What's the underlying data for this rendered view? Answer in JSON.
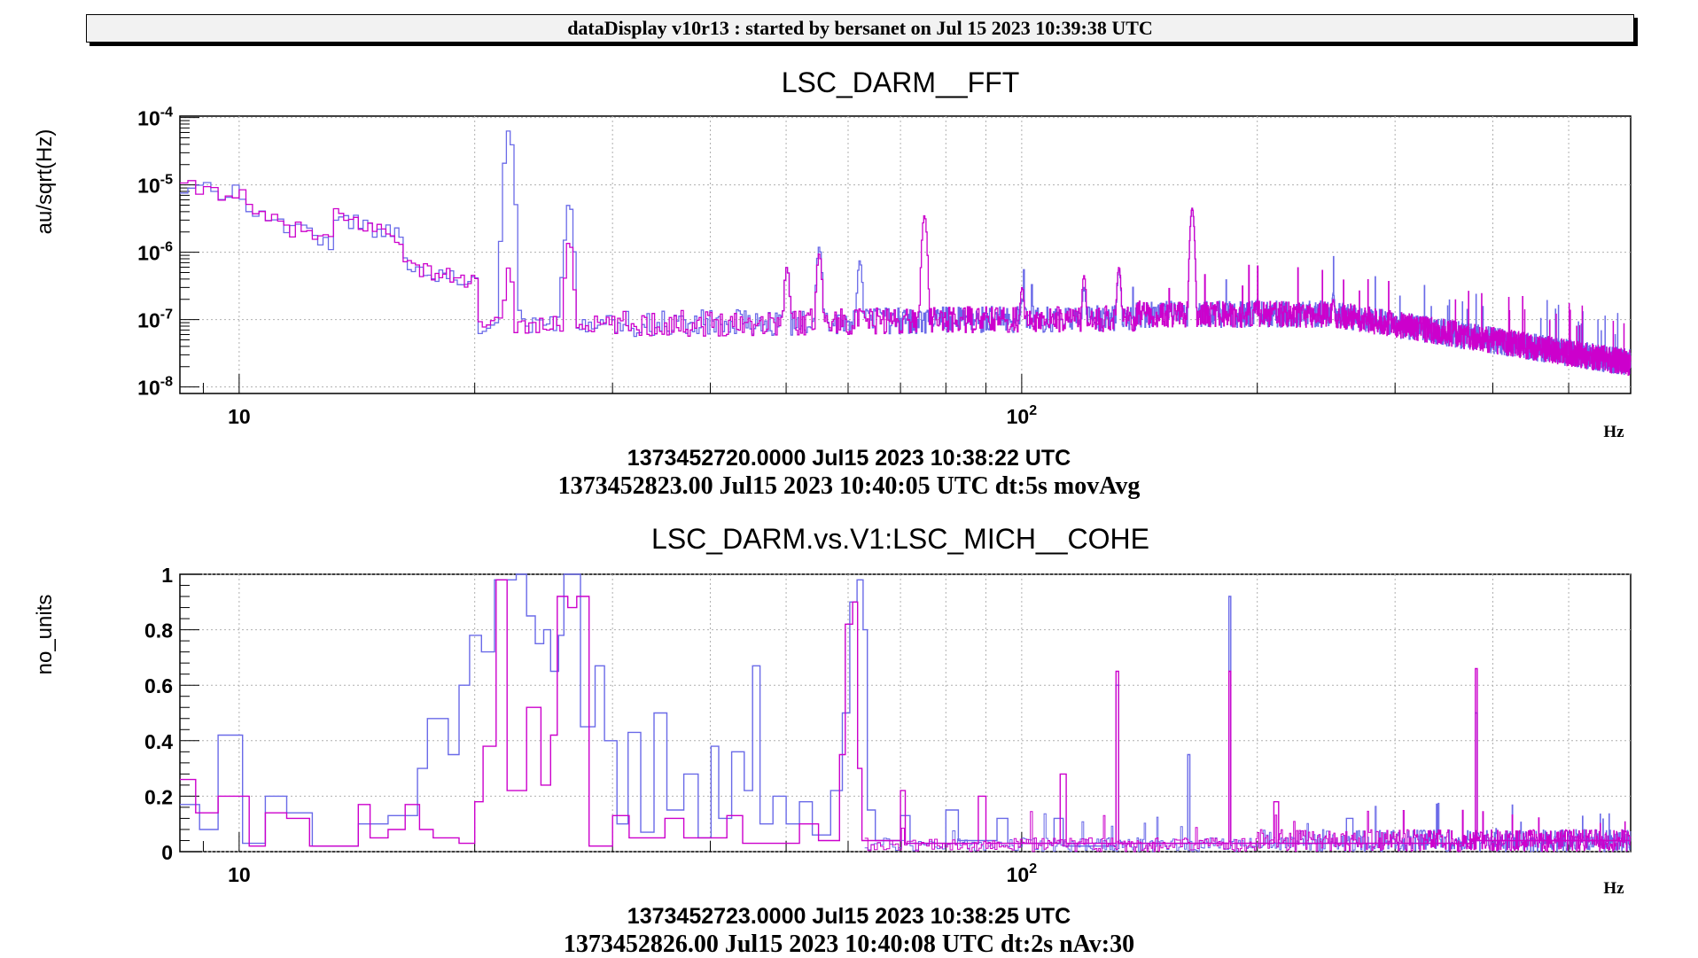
{
  "banner": "dataDisplay v10r13 : started by bersanet on Jul 15 2023 10:39:38 UTC",
  "colors": {
    "series_a": "#6a6ae8",
    "series_b": "#cc00cc",
    "time_a": "#cc00cc",
    "time_b": "#000000"
  },
  "chart_data": [
    {
      "type": "line",
      "title": "LSC_DARM__FFT",
      "ylabel": "au/sqrt(Hz)",
      "xlabel": "Hz",
      "xscale": "log",
      "yscale": "log",
      "xlim": [
        8.4,
        600
      ],
      "ylim": [
        8e-09,
        0.000105
      ],
      "grid": true,
      "x_ticks": [
        {
          "v": 10,
          "label": "10"
        },
        {
          "v": 100,
          "label": "10",
          "sup": "2"
        }
      ],
      "y_ticks": [
        {
          "v": 0.0001,
          "base": "10",
          "exp": "-4"
        },
        {
          "v": 1e-05,
          "base": "10",
          "exp": "-5"
        },
        {
          "v": 1e-06,
          "base": "10",
          "exp": "-6"
        },
        {
          "v": 1e-07,
          "base": "10",
          "exp": "-7"
        },
        {
          "v": 1e-08,
          "base": "10",
          "exp": "-8"
        }
      ],
      "time_label_a": "1373452720.0000 Jul15 2023 10:38:22 UTC",
      "time_label_b": "1373452823.00 Jul15 2023 10:40:05 UTC dt:5s movAvg",
      "peaks_a": [
        [
          22,
          6.5e-05
        ],
        [
          26.3,
          5.5e-06
        ],
        [
          26.0,
          1.1e-06
        ],
        [
          62,
          7.5e-07
        ],
        [
          55,
          1.2e-06
        ],
        [
          50,
          6e-07
        ],
        [
          100,
          2e-07
        ],
        [
          120,
          3e-07
        ],
        [
          133,
          5.5e-07
        ],
        [
          165,
          4.5e-06
        ],
        [
          200,
          2e-07
        ],
        [
          250,
          2.5e-07
        ]
      ],
      "peaks_b": [
        [
          22,
          6e-07
        ],
        [
          26.3,
          1.5e-06
        ],
        [
          75,
          3.5e-06
        ],
        [
          55,
          9.5e-07
        ],
        [
          50,
          6e-07
        ],
        [
          100,
          3e-07
        ],
        [
          120,
          4.5e-07
        ],
        [
          133,
          6e-07
        ],
        [
          165,
          4.5e-06
        ],
        [
          250,
          2e-07
        ]
      ]
    },
    {
      "type": "line",
      "title": "LSC_DARM.vs.V1:LSC_MICH__COHE",
      "ylabel": "no_units",
      "xlabel": "Hz",
      "xscale": "log",
      "xlim": [
        8.4,
        600
      ],
      "ylim": [
        0,
        1
      ],
      "grid": true,
      "x_ticks": [
        {
          "v": 10,
          "label": "10"
        },
        {
          "v": 100,
          "label": "10",
          "sup": "2"
        }
      ],
      "y_ticks": [
        {
          "v": 0,
          "label": "0"
        },
        {
          "v": 0.2,
          "label": "0.2"
        },
        {
          "v": 0.4,
          "label": "0.4"
        },
        {
          "v": 0.6,
          "label": "0.6"
        },
        {
          "v": 0.8,
          "label": "0.8"
        },
        {
          "v": 1,
          "label": "1"
        }
      ],
      "time_label_a": "1373452723.0000 Jul15 2023 10:38:25 UTC",
      "time_label_b": "1373452826.00 Jul15 2023 10:40:08 UTC dt:2s nAv:30",
      "series_a_points": [
        [
          8.4,
          0.17
        ],
        [
          8.9,
          0.17
        ],
        [
          8.9,
          0.08
        ],
        [
          9.4,
          0.08
        ],
        [
          9.4,
          0.42
        ],
        [
          10.1,
          0.42
        ],
        [
          10.1,
          0.03
        ],
        [
          10.8,
          0.03
        ],
        [
          10.8,
          0.2
        ],
        [
          11.5,
          0.2
        ],
        [
          11.5,
          0.14
        ],
        [
          12.4,
          0.14
        ],
        [
          12.4,
          0.02
        ],
        [
          14.2,
          0.02
        ],
        [
          14.2,
          0.1
        ],
        [
          15.5,
          0.1
        ],
        [
          15.5,
          0.13
        ],
        [
          16.9,
          0.13
        ],
        [
          16.9,
          0.3
        ],
        [
          17.4,
          0.3
        ],
        [
          17.4,
          0.48
        ],
        [
          18.5,
          0.48
        ],
        [
          18.5,
          0.35
        ],
        [
          19.1,
          0.35
        ],
        [
          19.1,
          0.6
        ],
        [
          19.7,
          0.6
        ],
        [
          19.7,
          0.78
        ],
        [
          20.4,
          0.78
        ],
        [
          20.4,
          0.72
        ],
        [
          21.2,
          0.72
        ],
        [
          21.2,
          0.98
        ],
        [
          22.6,
          0.98
        ],
        [
          22.6,
          1.0
        ],
        [
          23.3,
          1.0
        ],
        [
          23.3,
          0.85
        ],
        [
          23.9,
          0.85
        ],
        [
          23.9,
          0.75
        ],
        [
          24.5,
          0.75
        ],
        [
          24.5,
          0.8
        ],
        [
          25.0,
          0.8
        ],
        [
          25.0,
          0.65
        ],
        [
          25.6,
          0.65
        ],
        [
          25.6,
          0.78
        ],
        [
          26.0,
          0.78
        ],
        [
          26.0,
          1.0
        ],
        [
          27.3,
          1.0
        ],
        [
          27.3,
          0.45
        ],
        [
          28.5,
          0.45
        ],
        [
          28.5,
          0.67
        ],
        [
          29.3,
          0.67
        ],
        [
          29.3,
          0.4
        ],
        [
          30.4,
          0.4
        ],
        [
          30.4,
          0.1
        ],
        [
          31.4,
          0.1
        ],
        [
          31.4,
          0.43
        ],
        [
          32.6,
          0.43
        ],
        [
          32.6,
          0.07
        ],
        [
          33.9,
          0.07
        ],
        [
          33.9,
          0.5
        ],
        [
          35.2,
          0.5
        ],
        [
          35.2,
          0.15
        ],
        [
          37.0,
          0.15
        ],
        [
          37.0,
          0.28
        ],
        [
          38.6,
          0.28
        ],
        [
          38.6,
          0.05
        ],
        [
          40.1,
          0.05
        ],
        [
          40.1,
          0.38
        ],
        [
          41.0,
          0.38
        ],
        [
          41.0,
          0.12
        ],
        [
          42.6,
          0.12
        ],
        [
          42.6,
          0.36
        ],
        [
          44.2,
          0.36
        ],
        [
          44.2,
          0.22
        ],
        [
          45.3,
          0.22
        ],
        [
          45.3,
          0.67
        ],
        [
          46.3,
          0.67
        ],
        [
          46.3,
          0.1
        ],
        [
          48.1,
          0.1
        ],
        [
          48.1,
          0.2
        ],
        [
          50.0,
          0.2
        ],
        [
          50.0,
          0.1
        ],
        [
          52.0,
          0.1
        ],
        [
          52.0,
          0.18
        ],
        [
          54.0,
          0.18
        ],
        [
          54.0,
          0.06
        ],
        [
          57.0,
          0.06
        ],
        [
          57.0,
          0.22
        ],
        [
          59.0,
          0.22
        ],
        [
          59.0,
          0.5
        ],
        [
          60.3,
          0.5
        ],
        [
          60.3,
          0.9
        ],
        [
          61.6,
          0.9
        ],
        [
          61.6,
          0.98
        ],
        [
          62.7,
          0.98
        ],
        [
          62.7,
          0.8
        ],
        [
          63.5,
          0.8
        ],
        [
          63.5,
          0.15
        ],
        [
          65.0,
          0.15
        ],
        [
          65.0,
          0.04
        ],
        [
          70.0,
          0.04
        ],
        [
          70.0,
          0.13
        ],
        [
          72.0,
          0.13
        ],
        [
          72.0,
          0.03
        ],
        [
          80.0,
          0.03
        ],
        [
          80.0,
          0.15
        ],
        [
          83.0,
          0.15
        ],
        [
          83.0,
          0.04
        ],
        [
          93.0,
          0.04
        ],
        [
          93.0,
          0.12
        ],
        [
          96.0,
          0.12
        ],
        [
          96.0,
          0.03
        ],
        [
          110.0,
          0.03
        ],
        [
          110.0,
          0.12
        ],
        [
          113.0,
          0.12
        ],
        [
          113.0,
          0.02
        ],
        [
          132.0,
          0.02
        ],
        [
          132.0,
          0.6
        ],
        [
          133.0,
          0.6
        ],
        [
          133.0,
          0.03
        ],
        [
          163.0,
          0.03
        ],
        [
          163.0,
          0.35
        ],
        [
          164.0,
          0.35
        ],
        [
          164.0,
          0.03
        ],
        [
          184.0,
          0.03
        ],
        [
          184.0,
          0.92
        ],
        [
          185.0,
          0.92
        ],
        [
          185.0,
          0.03
        ],
        [
          260.0,
          0.03
        ],
        [
          260.0,
          0.12
        ],
        [
          265.0,
          0.12
        ],
        [
          265.0,
          0.03
        ],
        [
          380.0,
          0.03
        ],
        [
          380.0,
          0.5
        ],
        [
          382.0,
          0.5
        ],
        [
          382.0,
          0.04
        ],
        [
          600.0,
          0.04
        ]
      ],
      "series_b_points": [
        [
          8.4,
          0.26
        ],
        [
          8.8,
          0.26
        ],
        [
          8.8,
          0.14
        ],
        [
          9.4,
          0.14
        ],
        [
          9.4,
          0.2
        ],
        [
          10.3,
          0.2
        ],
        [
          10.3,
          0.02
        ],
        [
          10.8,
          0.02
        ],
        [
          10.8,
          0.14
        ],
        [
          11.5,
          0.14
        ],
        [
          11.5,
          0.12
        ],
        [
          12.3,
          0.12
        ],
        [
          12.3,
          0.02
        ],
        [
          14.2,
          0.02
        ],
        [
          14.2,
          0.17
        ],
        [
          14.7,
          0.17
        ],
        [
          14.7,
          0.05
        ],
        [
          15.5,
          0.05
        ],
        [
          15.5,
          0.08
        ],
        [
          16.3,
          0.08
        ],
        [
          16.3,
          0.17
        ],
        [
          17.0,
          0.17
        ],
        [
          17.0,
          0.08
        ],
        [
          17.7,
          0.08
        ],
        [
          17.7,
          0.05
        ],
        [
          19.1,
          0.05
        ],
        [
          19.1,
          0.03
        ],
        [
          20.0,
          0.03
        ],
        [
          20.0,
          0.18
        ],
        [
          20.5,
          0.18
        ],
        [
          20.5,
          0.38
        ],
        [
          21.3,
          0.38
        ],
        [
          21.3,
          0.98
        ],
        [
          22.0,
          0.98
        ],
        [
          22.0,
          0.22
        ],
        [
          23.3,
          0.22
        ],
        [
          23.3,
          0.52
        ],
        [
          24.3,
          0.52
        ],
        [
          24.3,
          0.24
        ],
        [
          25.0,
          0.24
        ],
        [
          25.0,
          0.42
        ],
        [
          25.5,
          0.42
        ],
        [
          25.5,
          0.92
        ],
        [
          26.3,
          0.92
        ],
        [
          26.3,
          0.88
        ],
        [
          27.0,
          0.88
        ],
        [
          27.0,
          0.92
        ],
        [
          28.0,
          0.92
        ],
        [
          28.0,
          0.02
        ],
        [
          30.0,
          0.02
        ],
        [
          30.0,
          0.13
        ],
        [
          31.5,
          0.13
        ],
        [
          31.5,
          0.05
        ],
        [
          35.0,
          0.05
        ],
        [
          35.0,
          0.12
        ],
        [
          37.0,
          0.12
        ],
        [
          37.0,
          0.05
        ],
        [
          42.0,
          0.05
        ],
        [
          42.0,
          0.13
        ],
        [
          44.0,
          0.13
        ],
        [
          44.0,
          0.03
        ],
        [
          52.0,
          0.03
        ],
        [
          52.0,
          0.1
        ],
        [
          55.0,
          0.1
        ],
        [
          55.0,
          0.04
        ],
        [
          58.5,
          0.04
        ],
        [
          58.5,
          0.35
        ],
        [
          59.5,
          0.35
        ],
        [
          59.5,
          0.82
        ],
        [
          60.8,
          0.82
        ],
        [
          60.8,
          0.9
        ],
        [
          61.7,
          0.9
        ],
        [
          61.7,
          0.3
        ],
        [
          62.5,
          0.3
        ],
        [
          62.5,
          0.04
        ],
        [
          70.0,
          0.04
        ],
        [
          70.0,
          0.22
        ],
        [
          71.0,
          0.22
        ],
        [
          71.0,
          0.03
        ],
        [
          88.0,
          0.03
        ],
        [
          88.0,
          0.2
        ],
        [
          90.0,
          0.2
        ],
        [
          90.0,
          0.03
        ],
        [
          112.0,
          0.03
        ],
        [
          112.0,
          0.28
        ],
        [
          114.0,
          0.28
        ],
        [
          114.0,
          0.03
        ],
        [
          132.0,
          0.03
        ],
        [
          132.0,
          0.65
        ],
        [
          133.0,
          0.65
        ],
        [
          133.0,
          0.03
        ],
        [
          184.0,
          0.03
        ],
        [
          184.0,
          0.65
        ],
        [
          185.0,
          0.65
        ],
        [
          185.0,
          0.03
        ],
        [
          210.0,
          0.03
        ],
        [
          210.0,
          0.18
        ],
        [
          213.0,
          0.18
        ],
        [
          213.0,
          0.03
        ],
        [
          380.0,
          0.03
        ],
        [
          380.0,
          0.66
        ],
        [
          382.0,
          0.66
        ],
        [
          382.0,
          0.04
        ],
        [
          600.0,
          0.04
        ]
      ]
    }
  ]
}
